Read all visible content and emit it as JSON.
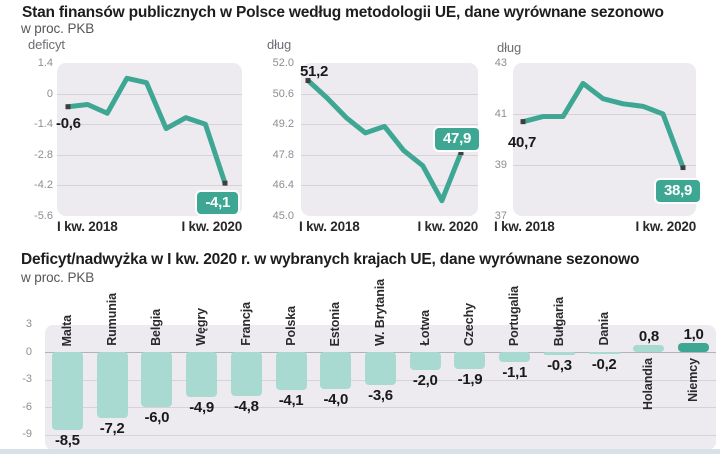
{
  "top_section": {
    "title": "Stan finansów publicznych w Polsce według metodologii UE, dane wyrównane sezonowo",
    "subtitle": "w proc. PKB"
  },
  "bottom_section": {
    "title": "Deficyt/nadwyżka w I kw. 2020 r. w wybranych krajach UE, dane wyrównane sezonowo",
    "subtitle": "w proc. PKB"
  },
  "colors": {
    "teal": "#3ea794",
    "light_teal": "#a9dad2",
    "panel_bg": "#edebef",
    "marker": "#3f3f41",
    "badge_text": "#ffffff"
  },
  "chart_data": [
    {
      "type": "line",
      "title": "deficyt",
      "unit": "w proc. PKB",
      "x_ticks": [
        "I kw. 2018",
        "I kw. 2020"
      ],
      "quarters": 9,
      "values": [
        -0.6,
        -0.5,
        -0.9,
        0.7,
        0.5,
        -1.6,
        -1.1,
        -1.4,
        -4.1
      ],
      "ylim": [
        -5.6,
        1.4
      ],
      "yticks": [
        "1.4",
        "0",
        "-1.4",
        "-2.8",
        "-4.2",
        "-5.6"
      ],
      "first_point_label": "-0,6",
      "last_point_label": "-4,1"
    },
    {
      "type": "line",
      "title": "dług",
      "unit": "w proc. PKB",
      "x_ticks": [
        "I kw. 2018",
        "I kw. 2020"
      ],
      "quarters": 9,
      "values": [
        51.2,
        50.4,
        49.5,
        48.8,
        49.1,
        48.0,
        47.3,
        45.7,
        47.9
      ],
      "ylim": [
        45.0,
        52.0
      ],
      "yticks": [
        "52.0",
        "50.6",
        "49.2",
        "47.8",
        "46.4",
        "45.0"
      ],
      "first_point_label": "51,2",
      "last_point_label": "47,9"
    },
    {
      "type": "line",
      "title": "dług",
      "unit": "w proc. PKB",
      "x_ticks": [
        "I kw. 2018",
        "I kw. 2020"
      ],
      "quarters": 9,
      "values": [
        40.7,
        40.9,
        40.9,
        42.2,
        41.6,
        41.4,
        41.3,
        41.0,
        38.9
      ],
      "ylim": [
        37,
        43
      ],
      "yticks": [
        "43",
        "41",
        "39",
        "37"
      ],
      "first_point_label": "40,7",
      "last_point_label": "38,9"
    },
    {
      "type": "bar",
      "title": "Deficyt/nadwyżka w I kw. 2020 r. w wybranych krajach UE, dane wyrównane sezonowo",
      "unit": "w proc. PKB",
      "categories": [
        "Malta",
        "Rumunia",
        "Belgia",
        "Węgry",
        "Francja",
        "Polska",
        "Estonia",
        "W. Brytania",
        "Łotwa",
        "Czechy",
        "Portugalia",
        "Bułgaria",
        "Dania",
        "Holandia",
        "Niemcy"
      ],
      "values": [
        -8.5,
        -7.2,
        -6.0,
        -4.9,
        -4.8,
        -4.1,
        -4.0,
        -3.6,
        -2.0,
        -1.9,
        -1.1,
        -0.3,
        -0.2,
        0.8,
        1.0
      ],
      "value_labels": [
        "-8,5",
        "-7,2",
        "-6,0",
        "-4,9",
        "-4,8",
        "-4,1",
        "-4,0",
        "-3,6",
        "-2,0",
        "-1,9",
        "-1,1",
        "-0,3",
        "-0,2",
        "0,8",
        "1,0"
      ],
      "yticks": [
        "3",
        "0",
        "-3",
        "-6",
        "-9"
      ],
      "ylim": [
        -10.5,
        3
      ],
      "emphasized_category": "Niemcy"
    }
  ]
}
